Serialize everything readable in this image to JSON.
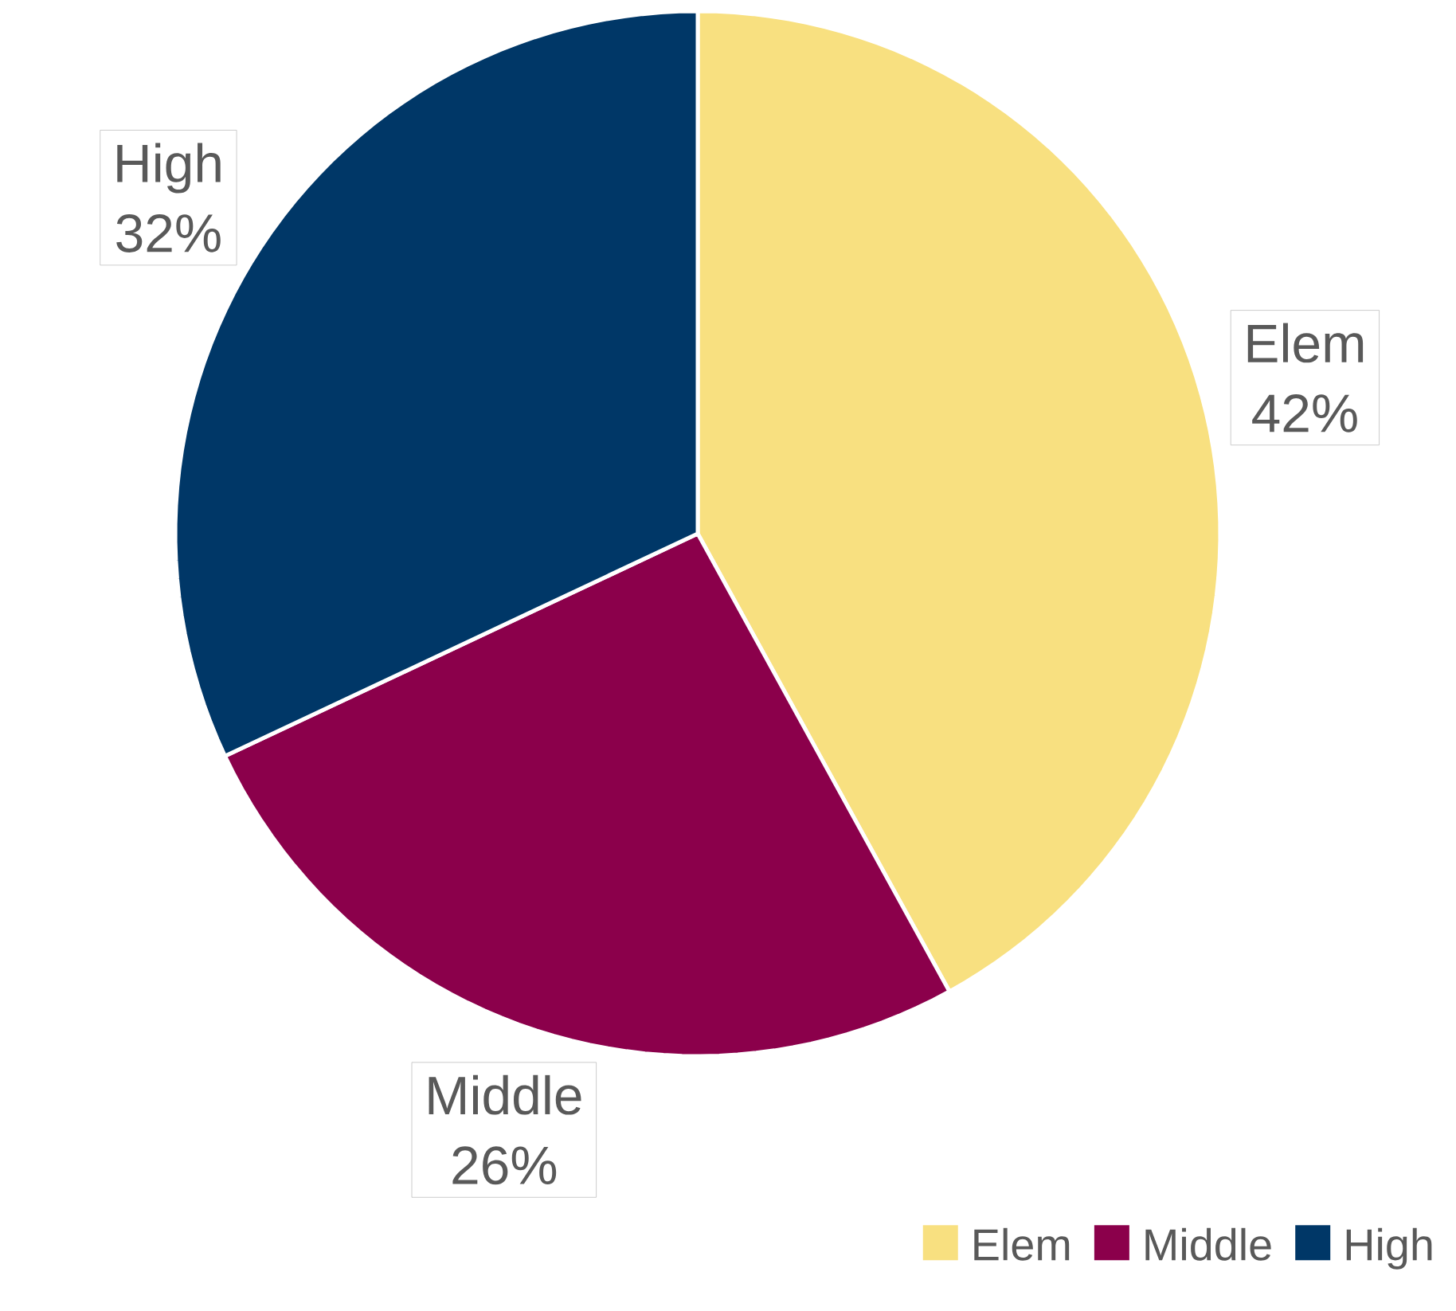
{
  "chart_data": {
    "type": "pie",
    "categories": [
      "Elem",
      "Middle",
      "High"
    ],
    "values": [
      42,
      26,
      32
    ],
    "colors": [
      "#f8e080",
      "#8b004b",
      "#003767"
    ],
    "value_labels": [
      "42%",
      "26%",
      "32%"
    ],
    "legend": "bottom right"
  }
}
